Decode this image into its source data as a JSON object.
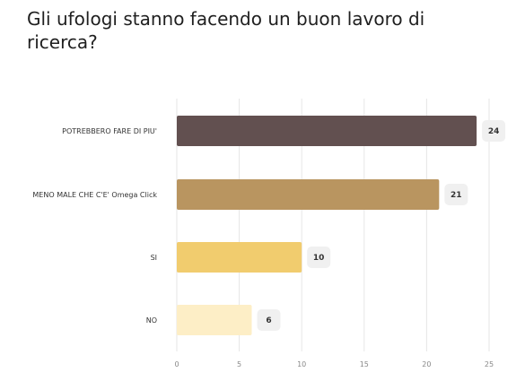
{
  "title": "Gli ufologi stanno facendo un buon lavoro di ricerca?",
  "chart_data": {
    "type": "bar",
    "orientation": "horizontal",
    "categories": [
      "POTREBBERO FARE DI PIU'",
      "MENO MALE CHE C'E' Omega Click",
      "SI",
      "NO"
    ],
    "values": [
      24,
      21,
      10,
      6
    ],
    "colors": [
      "#625050",
      "#b99560",
      "#f1cc6e",
      "#fdeec6"
    ],
    "xlim": [
      0,
      25
    ],
    "xticks": [
      0,
      5,
      10,
      15,
      20,
      25
    ],
    "grid": true,
    "legend": "none"
  }
}
